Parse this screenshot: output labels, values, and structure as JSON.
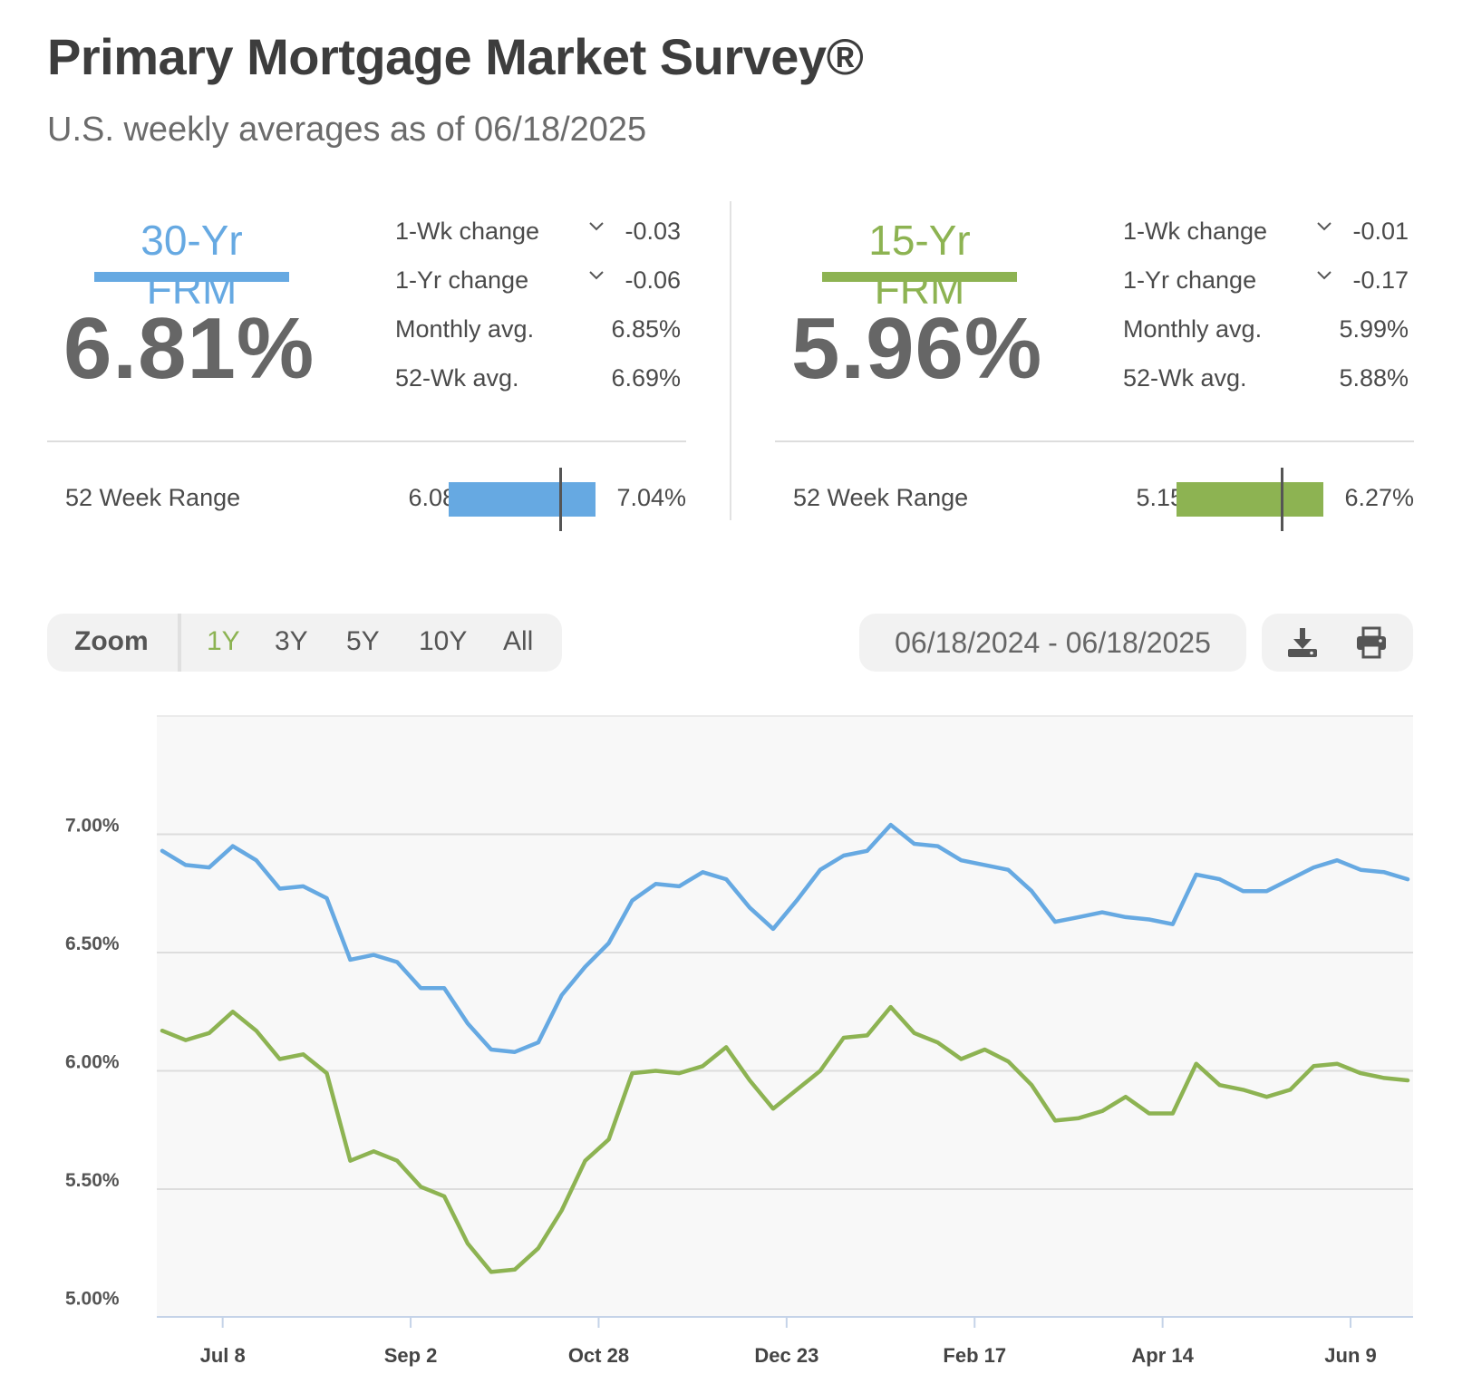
{
  "header": {
    "title": "Primary Mortgage Market Survey®",
    "subtitle": "U.S. weekly averages as of 06/18/2025"
  },
  "colors": {
    "frm30": "#66a9e2",
    "frm15": "#8db352"
  },
  "frm30": {
    "label": "30-Yr FRM",
    "rate": "6.81%",
    "stats": [
      {
        "label": "1-Wk change",
        "value": "-0.03",
        "icon": "chevron-down-icon"
      },
      {
        "label": "1-Yr change",
        "value": "-0.06",
        "icon": "chevron-down-icon"
      },
      {
        "label": "Monthly avg.",
        "value": "6.85%"
      },
      {
        "label": "52-Wk avg.",
        "value": "6.69%"
      }
    ],
    "range": {
      "label": "52 Week Range",
      "min": "6.08%",
      "max": "7.04%",
      "current_fraction": 0.76
    }
  },
  "frm15": {
    "label": "15-Yr FRM",
    "rate": "5.96%",
    "stats": [
      {
        "label": "1-Wk change",
        "value": "-0.01",
        "icon": "chevron-down-icon"
      },
      {
        "label": "1-Yr change",
        "value": "-0.17",
        "icon": "chevron-down-icon"
      },
      {
        "label": "Monthly avg.",
        "value": "5.99%"
      },
      {
        "label": "52-Wk avg.",
        "value": "5.88%"
      }
    ],
    "range": {
      "label": "52 Week Range",
      "min": "5.15%",
      "max": "6.27%",
      "current_fraction": 0.72
    }
  },
  "zoom": {
    "label": "Zoom",
    "options": [
      "1Y",
      "3Y",
      "5Y",
      "10Y",
      "All"
    ],
    "active": "1Y"
  },
  "date_range": "06/18/2024 - 06/18/2025",
  "toolbar": {
    "download_icon": "download-icon",
    "print_icon": "print-icon"
  },
  "chart_data": {
    "type": "line",
    "x_start": "2024-06-20",
    "x_step_days": 7,
    "x_ticks": [
      {
        "label": "Jul 8",
        "date": "2024-07-08"
      },
      {
        "label": "Sep 2",
        "date": "2024-09-02"
      },
      {
        "label": "Oct 28",
        "date": "2024-10-28"
      },
      {
        "label": "Dec 23",
        "date": "2024-12-23"
      },
      {
        "label": "Feb 17",
        "date": "2025-02-17"
      },
      {
        "label": "Apr 14",
        "date": "2025-04-14"
      },
      {
        "label": "Jun 9",
        "date": "2025-06-09"
      }
    ],
    "y_ticks": [
      {
        "value": 7.0,
        "label": "7.00%"
      },
      {
        "value": 6.5,
        "label": "6.50%"
      },
      {
        "value": 6.0,
        "label": "6.00%"
      },
      {
        "value": 5.5,
        "label": "5.50%"
      },
      {
        "value": 5.0,
        "label": "5.00%"
      }
    ],
    "ylim": [
      4.96,
      7.5
    ],
    "grid": true,
    "series": [
      {
        "name": "30-Yr FRM",
        "color": "#66a9e2",
        "values": [
          6.93,
          6.87,
          6.86,
          6.95,
          6.89,
          6.77,
          6.78,
          6.73,
          6.47,
          6.49,
          6.46,
          6.35,
          6.35,
          6.2,
          6.09,
          6.08,
          6.12,
          6.32,
          6.44,
          6.54,
          6.72,
          6.79,
          6.78,
          6.84,
          6.81,
          6.69,
          6.6,
          6.72,
          6.85,
          6.91,
          6.93,
          7.04,
          6.96,
          6.95,
          6.89,
          6.87,
          6.85,
          6.76,
          6.63,
          6.65,
          6.67,
          6.65,
          6.64,
          6.62,
          6.83,
          6.81,
          6.76,
          6.76,
          6.81,
          6.86,
          6.89,
          6.85,
          6.84,
          6.81
        ]
      },
      {
        "name": "15-Yr FRM",
        "color": "#8db352",
        "values": [
          6.17,
          6.13,
          6.16,
          6.25,
          6.17,
          6.05,
          6.07,
          5.99,
          5.62,
          5.66,
          5.62,
          5.51,
          5.47,
          5.27,
          5.15,
          5.16,
          5.25,
          5.41,
          5.62,
          5.71,
          5.99,
          6.0,
          5.99,
          6.02,
          6.1,
          5.96,
          5.84,
          5.92,
          6.0,
          6.14,
          6.15,
          6.27,
          6.16,
          6.12,
          6.05,
          6.09,
          6.04,
          5.94,
          5.79,
          5.8,
          5.83,
          5.89,
          5.82,
          5.82,
          6.03,
          5.94,
          5.92,
          5.89,
          5.92,
          6.02,
          6.03,
          5.99,
          5.97,
          5.96
        ]
      }
    ]
  }
}
